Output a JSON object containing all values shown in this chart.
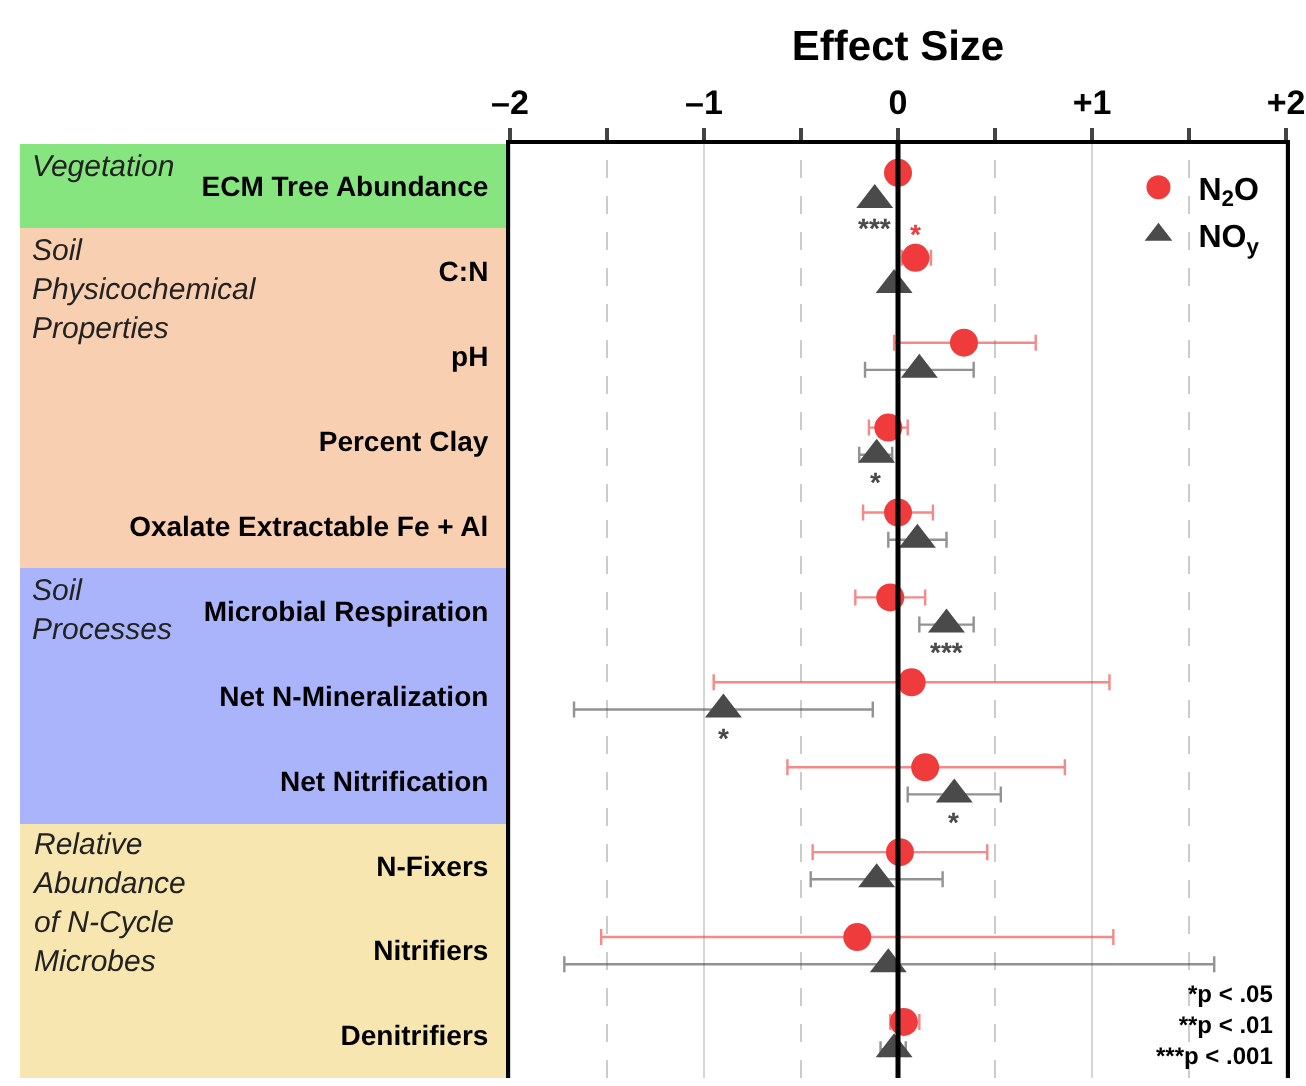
{
  "chart_data": {
    "type": "scatter",
    "orientation": "horizontal",
    "xlabel": "Effect Size",
    "categories": [
      "ECM Tree Abundance",
      "C:N",
      "pH",
      "Percent Clay",
      "Oxalate Extractable Fe + Al",
      "Microbial Respiration",
      "Net N-Mineralization",
      "Net Nitrification",
      "N-Fixers",
      "Nitrifiers",
      "Denitrifiers"
    ],
    "series": [
      {
        "name": "N$_{2}$O",
        "color": "#ef3b3b",
        "marker": "circle",
        "values": [
          0,
          0.09,
          0.34,
          -0.05,
          0,
          -0.04,
          0.07,
          0.14,
          0.01,
          -0.21,
          0.03
        ],
        "errors": [
          null,
          [
            0.02,
            0.17
          ],
          [
            -0.02,
            0.71
          ],
          [
            -0.15,
            0.05
          ],
          [
            -0.18,
            0.18
          ],
          [
            -0.22,
            0.14
          ],
          [
            -0.95,
            1.09
          ],
          [
            -0.57,
            0.86
          ],
          [
            -0.44,
            0.46
          ],
          [
            -1.53,
            1.11
          ],
          [
            -0.04,
            0.11
          ]
        ]
      },
      {
        "name": "NO$_{y}$",
        "color": "#4a4a4a",
        "marker": "triangle",
        "values": [
          -0.12,
          -0.02,
          0.11,
          -0.11,
          0.1,
          0.25,
          -0.9,
          0.29,
          -0.11,
          -0.05,
          -0.02
        ],
        "errors": [
          null,
          null,
          [
            -0.17,
            0.39
          ],
          [
            -0.2,
            -0.03
          ],
          [
            -0.05,
            0.25
          ],
          [
            0.11,
            0.39
          ],
          [
            -1.67,
            -0.13
          ],
          [
            0.05,
            0.53
          ],
          [
            -0.45,
            0.23
          ],
          [
            -1.72,
            1.63
          ],
          [
            -0.09,
            0.04
          ]
        ]
      }
    ],
    "xlim": [
      -2,
      2
    ],
    "xticks": [
      {
        "value": -2,
        "label": "–2"
      },
      {
        "value": -1.5,
        "label": null
      },
      {
        "value": -1,
        "label": "–1"
      },
      {
        "value": -0.5,
        "label": null
      },
      0,
      {
        "value": 0.5,
        "label": null
      },
      {
        "value": 1,
        "label": "+1"
      },
      {
        "value": 1.5,
        "label": null
      },
      {
        "value": 2,
        "label": "+2"
      }
    ],
    "grid": "x",
    "legend": "top right",
    "ref_lines": [
      {
        "axis": "x",
        "value": 0,
        "color": "#000000"
      }
    ],
    "annotations": [
      "Vegetation",
      "Soil Physicochemical Properties",
      "Soil Processes",
      "Relative Abundance of N-Cycle Microbes",
      {
        "text": "***",
        "x": -0.12,
        "y": "ECM Tree Abundance"
      },
      {
        "text": "*",
        "x": 0.09,
        "y": "C:N"
      },
      {
        "text": "*",
        "x": -0.11,
        "y": "Percent Clay"
      },
      {
        "text": "***",
        "x": 0.25,
        "y": "Microbial Respiration"
      },
      {
        "text": "*",
        "x": -0.9,
        "y": "Net N-Mineralization"
      },
      {
        "text": "*",
        "x": 0.29,
        "y": "Net Nitrification"
      },
      "*p < .05\n**p < .01\n***p < .001"
    ]
  }
}
